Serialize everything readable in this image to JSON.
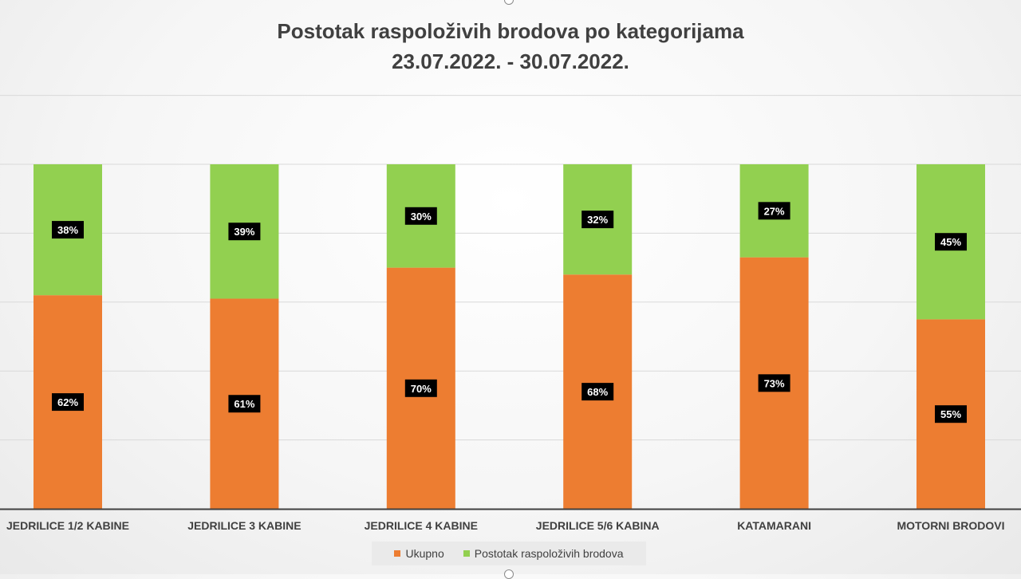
{
  "chart_data": {
    "type": "bar",
    "stacked": true,
    "title": "Postotak raspoloživih brodova po kategorijama",
    "subtitle": "23.07.2022. - 30.07.2022.",
    "categories": [
      "JEDRILICE 1/2 KABINE",
      "JEDRILICE 3 KABINE",
      "JEDRILICE 4 KABINE",
      "JEDRILICE 5/6 KABINA",
      "KATAMARANI",
      "MOTORNI BRODOVI"
    ],
    "series": [
      {
        "name": "Ukupno",
        "color": "#ed7d31",
        "values": [
          62,
          61,
          70,
          68,
          73,
          55
        ],
        "labels": [
          "62%",
          "61%",
          "70%",
          "68%",
          "73%",
          "55%"
        ]
      },
      {
        "name": "Postotak raspoloživih brodova",
        "color": "#92d050",
        "values": [
          38,
          39,
          30,
          32,
          27,
          45
        ],
        "labels": [
          "38%",
          "39%",
          "30%",
          "32%",
          "27%",
          "45%"
        ]
      }
    ],
    "ylim": [
      0,
      100
    ],
    "grid": true,
    "legend_position": "bottom"
  }
}
